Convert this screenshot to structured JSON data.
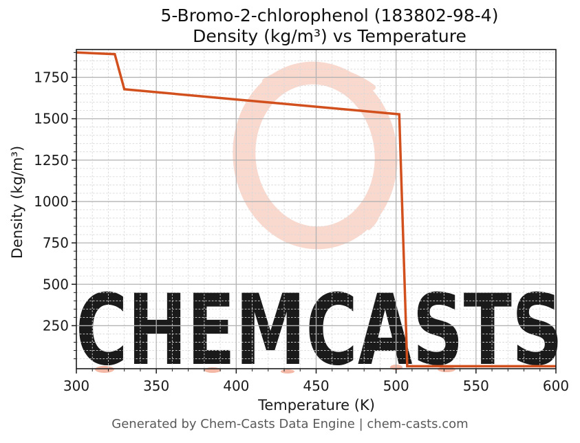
{
  "header": {
    "title_line1": "5-Bromo-2-chlorophenol (183802-98-4)",
    "title_line2": "Density (kg/m³) vs Temperature"
  },
  "footer": {
    "text": "Generated by Chem-Casts Data Engine | chem-casts.com"
  },
  "watermark": {
    "text": "CHEMCASTS",
    "text_color": "#f6cdc1",
    "ring_color": "#f9d8ce",
    "splatter_color": "#f3b8a6"
  },
  "chart_data": {
    "type": "line",
    "title": "5-Bromo-2-chlorophenol (183802-98-4)",
    "subtitle": "Density (kg/m³) vs Temperature",
    "xlabel": "Temperature (K)",
    "ylabel": "Density (kg/m³)",
    "xlim": [
      300,
      600
    ],
    "ylim": [
      -10,
      1918
    ],
    "x_ticks": [
      300,
      350,
      400,
      450,
      500,
      550,
      600
    ],
    "y_ticks": [
      250,
      500,
      750,
      1000,
      1250,
      1500,
      1750
    ],
    "x_minor_step": 10,
    "y_minor_step": 50,
    "grid": {
      "major": "solid",
      "minor": "dashed"
    },
    "legend_position": "none",
    "line_color": "#d2501e",
    "line_width": 3.5,
    "series": [
      {
        "name": "Density",
        "points": [
          [
            300,
            1900
          ],
          [
            324,
            1890
          ],
          [
            330,
            1678
          ],
          [
            502,
            1527
          ],
          [
            507,
            5
          ],
          [
            600,
            5
          ]
        ]
      }
    ]
  }
}
